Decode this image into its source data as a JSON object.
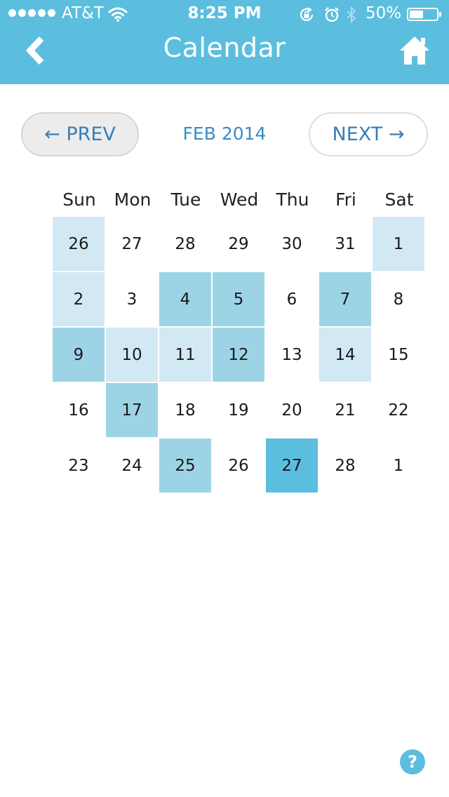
{
  "status_bar": {
    "carrier": "AT&T",
    "time": "8:25 PM",
    "battery_percent": "50%",
    "battery_level": 0.5,
    "icons": [
      "signal-dots-icon",
      "wifi-icon",
      "rotation-lock-icon",
      "alarm-icon",
      "bluetooth-icon",
      "battery-icon"
    ]
  },
  "nav": {
    "title": "Calendar",
    "back_icon": "chevron-left-icon",
    "home_icon": "home-icon"
  },
  "month_nav": {
    "prev_label": "← PREV",
    "month": "FEB 2014",
    "next_label": "NEXT →"
  },
  "calendar": {
    "weekdays": [
      "Sun",
      "Mon",
      "Tue",
      "Wed",
      "Thu",
      "Fri",
      "Sat"
    ],
    "weeks": [
      [
        {
          "day": "26",
          "color": "#d2e9f4"
        },
        {
          "day": "27",
          "color": "#ffffff"
        },
        {
          "day": "28",
          "color": "#ffffff"
        },
        {
          "day": "29",
          "color": "#ffffff"
        },
        {
          "day": "30",
          "color": "#ffffff"
        },
        {
          "day": "31",
          "color": "#ffffff"
        },
        {
          "day": "1",
          "color": "#d2e9f4"
        }
      ],
      [
        {
          "day": "2",
          "color": "#d2e9f4"
        },
        {
          "day": "3",
          "color": "#ffffff"
        },
        {
          "day": "4",
          "color": "#9cd4e6"
        },
        {
          "day": "5",
          "color": "#9cd4e6"
        },
        {
          "day": "6",
          "color": "#ffffff"
        },
        {
          "day": "7",
          "color": "#9cd4e6"
        },
        {
          "day": "8",
          "color": "#ffffff"
        }
      ],
      [
        {
          "day": "9",
          "color": "#9cd4e6"
        },
        {
          "day": "10",
          "color": "#d2e9f4"
        },
        {
          "day": "11",
          "color": "#d2e9f4"
        },
        {
          "day": "12",
          "color": "#9cd4e6"
        },
        {
          "day": "13",
          "color": "#ffffff"
        },
        {
          "day": "14",
          "color": "#d2e9f4"
        },
        {
          "day": "15",
          "color": "#ffffff"
        }
      ],
      [
        {
          "day": "16",
          "color": "#ffffff"
        },
        {
          "day": "17",
          "color": "#9cd4e6"
        },
        {
          "day": "18",
          "color": "#ffffff"
        },
        {
          "day": "19",
          "color": "#ffffff"
        },
        {
          "day": "20",
          "color": "#ffffff"
        },
        {
          "day": "21",
          "color": "#ffffff"
        },
        {
          "day": "22",
          "color": "#ffffff"
        }
      ],
      [
        {
          "day": "23",
          "color": "#ffffff"
        },
        {
          "day": "24",
          "color": "#ffffff"
        },
        {
          "day": "25",
          "color": "#9cd4e6"
        },
        {
          "day": "26",
          "color": "#ffffff"
        },
        {
          "day": "27",
          "color": "#5bbede"
        },
        {
          "day": "28",
          "color": "#ffffff"
        },
        {
          "day": "1",
          "color": "#ffffff"
        }
      ]
    ]
  },
  "help": {
    "label": "?",
    "icon": "help-icon"
  },
  "colors": {
    "accent": "#5bbede",
    "light_fill": "#d2e9f4",
    "medium_fill": "#9cd4e6",
    "link_text": "#3b7db5"
  }
}
